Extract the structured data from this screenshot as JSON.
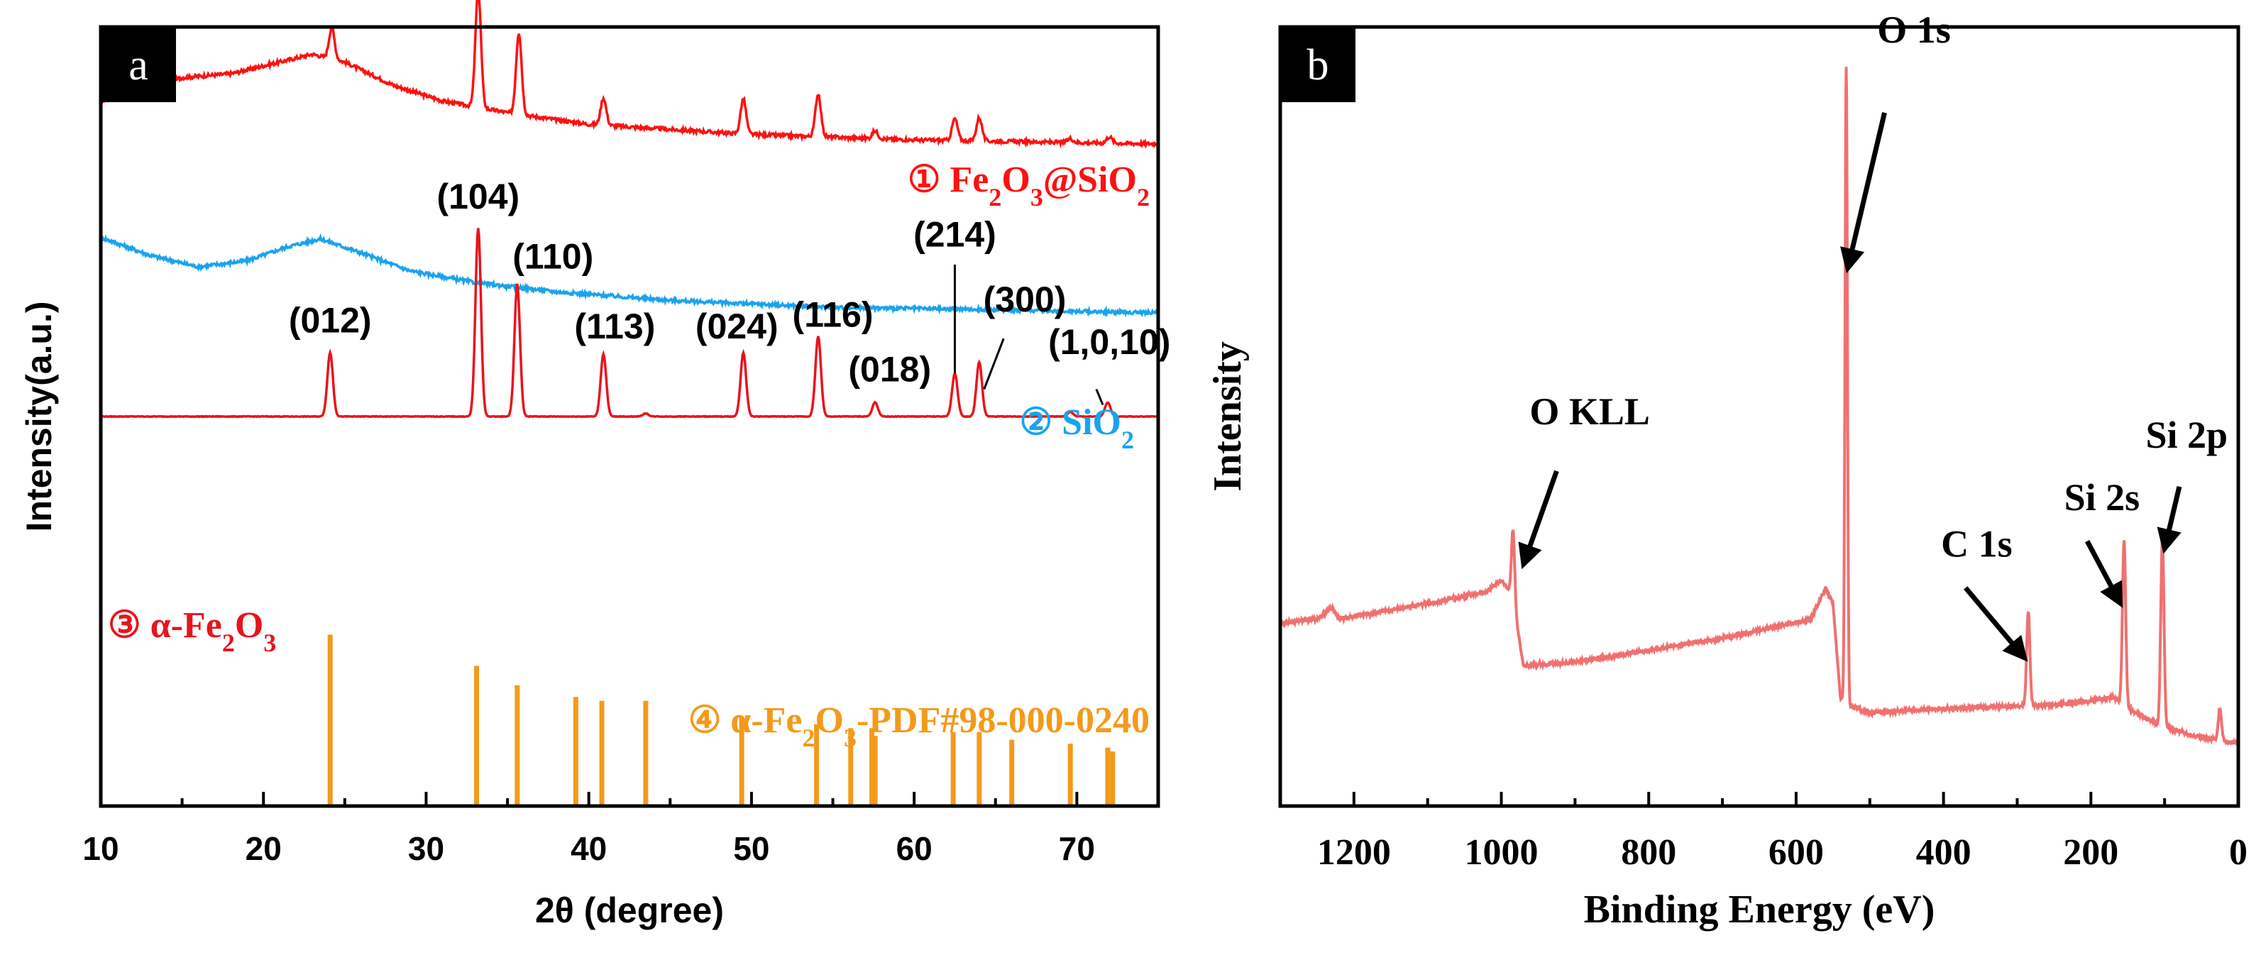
{
  "chart_data": [
    {
      "panel": "a",
      "type": "line",
      "xlabel": "2θ (degree)",
      "ylabel": "Intensity(a.u.)",
      "xlim": [
        10,
        75
      ],
      "xticks": [
        "10",
        "20",
        "30",
        "40",
        "50",
        "60",
        "70"
      ],
      "colors": {
        "fe2o3_sio2": "#ff1010",
        "sio2": "#1aa3ee",
        "fe2o3": "#e8141c",
        "pdf": "#f39a1a"
      },
      "series": [
        {
          "key": "fe2o3_sio2",
          "legend": {
            "num": "①",
            "parts": [
              [
                "Fe",
                false
              ],
              [
                "2",
                true
              ],
              [
                "O",
                false
              ],
              [
                "3",
                true
              ],
              [
                "@SiO",
                false
              ],
              [
                "2",
                true
              ]
            ]
          },
          "baseline": [
            [
              10,
              0.905
            ],
            [
              12,
              0.92
            ],
            [
              15,
              0.935
            ],
            [
              18,
              0.94
            ],
            [
              21,
              0.955
            ],
            [
              23,
              0.965
            ],
            [
              25,
              0.955
            ],
            [
              28,
              0.925
            ],
            [
              31,
              0.905
            ],
            [
              35,
              0.89
            ],
            [
              40,
              0.875
            ],
            [
              50,
              0.862
            ],
            [
              60,
              0.855
            ],
            [
              75,
              0.85
            ]
          ],
          "peaks": [
            [
              24.2,
              0.04
            ],
            [
              33.2,
              0.15
            ],
            [
              35.7,
              0.105
            ],
            [
              40.9,
              0.035
            ],
            [
              49.5,
              0.045
            ],
            [
              54.1,
              0.055
            ],
            [
              57.6,
              0.01
            ],
            [
              62.5,
              0.028
            ],
            [
              64.0,
              0.03
            ],
            [
              69.6,
              0.005
            ],
            [
              72.0,
              0.008
            ]
          ]
        },
        {
          "key": "sio2",
          "legend": {
            "num": "②",
            "parts": [
              [
                "SiO",
                false
              ],
              [
                "2",
                true
              ]
            ]
          },
          "baseline": [
            [
              10,
              0.73
            ],
            [
              13,
              0.707
            ],
            [
              16,
              0.692
            ],
            [
              19,
              0.7
            ],
            [
              21.5,
              0.718
            ],
            [
              23.5,
              0.728
            ],
            [
              26,
              0.71
            ],
            [
              29,
              0.687
            ],
            [
              33,
              0.672
            ],
            [
              38,
              0.66
            ],
            [
              45,
              0.649
            ],
            [
              55,
              0.64
            ],
            [
              65,
              0.637
            ],
            [
              75,
              0.633
            ]
          ],
          "peaks": []
        },
        {
          "key": "fe2o3",
          "legend": {
            "num": "③",
            "parts": [
              [
                "α-Fe",
                false
              ],
              [
                "2",
                true
              ],
              [
                "O",
                false
              ],
              [
                "3",
                true
              ]
            ]
          },
          "baseline": [
            [
              10,
              0.5
            ],
            [
              75,
              0.5
            ]
          ],
          "peaks": [
            [
              24.1,
              0.082
            ],
            [
              33.2,
              0.242
            ],
            [
              35.6,
              0.17
            ],
            [
              40.9,
              0.08
            ],
            [
              43.5,
              0.004
            ],
            [
              49.5,
              0.082
            ],
            [
              54.1,
              0.103
            ],
            [
              57.6,
              0.018
            ],
            [
              62.5,
              0.055
            ],
            [
              64.0,
              0.07
            ],
            [
              69.6,
              0.006
            ],
            [
              71.9,
              0.018
            ]
          ],
          "hkl": [
            {
              "label": "(012)",
              "x": 24.1,
              "y": 0.608
            },
            {
              "label": "(104)",
              "x": 33.2,
              "y": 0.767
            },
            {
              "label": "(110)",
              "x": 37.8,
              "y": 0.69
            },
            {
              "label": "(113)",
              "x": 41.6,
              "y": 0.6
            },
            {
              "label": "(024)",
              "x": 49.1,
              "y": 0.6
            },
            {
              "label": "(116)",
              "x": 55.0,
              "y": 0.615
            },
            {
              "label": "(018)",
              "x": 58.5,
              "y": 0.545
            },
            {
              "label": "(214)",
              "x": 62.5,
              "y": 0.718
            },
            {
              "label": "(300)",
              "x": 66.8,
              "y": 0.635
            },
            {
              "label": "(1,0,10)",
              "x": 72.0,
              "y": 0.58
            }
          ]
        },
        {
          "key": "pdf",
          "type": "stick",
          "legend": {
            "num": "④",
            "parts": [
              [
                "α-Fe",
                false
              ],
              [
                "2",
                true
              ],
              [
                "O",
                false
              ],
              [
                "3",
                true
              ],
              [
                "-PDF#98-000-0240",
                false
              ]
            ]
          },
          "baseline": 0.0,
          "sticks": [
            [
              24.1,
              0.22
            ],
            [
              33.1,
              0.18
            ],
            [
              35.6,
              0.155
            ],
            [
              39.2,
              0.14
            ],
            [
              40.8,
              0.135
            ],
            [
              43.5,
              0.135
            ],
            [
              49.4,
              0.115
            ],
            [
              54.0,
              0.105
            ],
            [
              56.1,
              0.1
            ],
            [
              57.4,
              0.1
            ],
            [
              57.6,
              0.09
            ],
            [
              62.4,
              0.095
            ],
            [
              64.0,
              0.095
            ],
            [
              66.0,
              0.085
            ],
            [
              69.6,
              0.08
            ],
            [
              71.9,
              0.075
            ],
            [
              72.2,
              0.07
            ]
          ]
        }
      ]
    },
    {
      "panel": "b",
      "type": "line",
      "xlabel": "Binding Energy (eV)",
      "ylabel": "Intensity",
      "xlim": [
        1300,
        0
      ],
      "xticks": [
        "1200",
        "1000",
        "800",
        "600",
        "400",
        "200",
        "0"
      ],
      "color": "#f07070",
      "baseline": [
        [
          1300,
          0.235
        ],
        [
          1250,
          0.24
        ],
        [
          1230,
          0.255
        ],
        [
          1220,
          0.24
        ],
        [
          1100,
          0.26
        ],
        [
          1020,
          0.275
        ],
        [
          1000,
          0.29
        ],
        [
          985,
          0.27
        ],
        [
          970,
          0.18
        ],
        [
          900,
          0.185
        ],
        [
          800,
          0.2
        ],
        [
          700,
          0.215
        ],
        [
          580,
          0.24
        ],
        [
          560,
          0.28
        ],
        [
          550,
          0.26
        ],
        [
          540,
          0.14
        ],
        [
          532,
          0.13
        ],
        [
          500,
          0.12
        ],
        [
          400,
          0.125
        ],
        [
          300,
          0.128
        ],
        [
          250,
          0.13
        ],
        [
          200,
          0.135
        ],
        [
          170,
          0.14
        ],
        [
          140,
          0.12
        ],
        [
          110,
          0.105
        ],
        [
          60,
          0.09
        ],
        [
          30,
          0.085
        ],
        [
          0,
          0.08
        ]
      ],
      "peaks": [
        [
          984,
          0.09
        ],
        [
          532,
          0.82
        ],
        [
          285,
          0.12
        ],
        [
          155,
          0.21
        ],
        [
          103,
          0.24
        ],
        [
          25,
          0.04
        ]
      ],
      "annotations": [
        {
          "label": "O 1s",
          "x": 440,
          "y": 0.98,
          "arrow_from": [
            480,
            0.89
          ],
          "arrow_to": [
            530,
            0.69
          ]
        },
        {
          "label": "O KLL",
          "x": 880,
          "y": 0.49,
          "arrow_from": [
            925,
            0.43
          ],
          "arrow_to": [
            970,
            0.31
          ]
        },
        {
          "label": "C 1s",
          "x": 355,
          "y": 0.32,
          "arrow_from": [
            370,
            0.28
          ],
          "arrow_to": [
            290,
            0.19
          ]
        },
        {
          "label": "Si 2s",
          "x": 185,
          "y": 0.38,
          "arrow_from": [
            205,
            0.34
          ],
          "arrow_to": [
            160,
            0.26
          ]
        },
        {
          "label": "Si 2p",
          "x": 70,
          "y": 0.46,
          "arrow_from": [
            80,
            0.41
          ],
          "arrow_to": [
            100,
            0.33
          ]
        }
      ]
    }
  ]
}
